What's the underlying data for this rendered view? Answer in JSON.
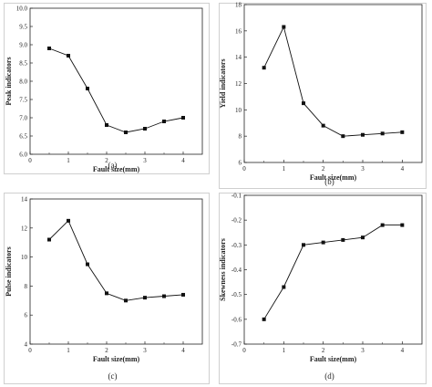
{
  "chart_data": [
    {
      "type": "line",
      "panel": "a",
      "caption": "(a)",
      "xlabel": "Fault size(mm)",
      "ylabel": "Peak indicators",
      "xlim": [
        0,
        4.5
      ],
      "ylim": [
        6.0,
        10.0
      ],
      "xticks": [
        "0",
        "1",
        "2",
        "3",
        "4"
      ],
      "yticks": [
        "6.0",
        "6.5",
        "7.0",
        "7.5",
        "8.0",
        "8.5",
        "9.0",
        "9.5",
        "10.0"
      ],
      "x": [
        0.5,
        1.0,
        1.5,
        2.0,
        2.5,
        3.0,
        3.5,
        4.0
      ],
      "y": [
        8.9,
        8.7,
        7.8,
        6.8,
        6.6,
        6.7,
        6.9,
        7.0
      ]
    },
    {
      "type": "line",
      "panel": "b",
      "caption": "(b)",
      "xlabel": "Fault size(mm)",
      "ylabel": "Yield indicators",
      "xlim": [
        0,
        4.5
      ],
      "ylim": [
        6,
        18
      ],
      "xticks": [
        "0",
        "1",
        "2",
        "3",
        "4"
      ],
      "yticks": [
        "6",
        "8",
        "10",
        "12",
        "14",
        "16",
        "18"
      ],
      "x": [
        0.5,
        1.0,
        1.5,
        2.0,
        2.5,
        3.0,
        3.5,
        4.0
      ],
      "y": [
        13.2,
        16.3,
        10.5,
        8.8,
        8.0,
        8.1,
        8.2,
        8.3
      ]
    },
    {
      "type": "line",
      "panel": "c",
      "caption": "(c)",
      "xlabel": "Fault size(mm)",
      "ylabel": "Pulse indicators",
      "xlim": [
        0,
        4.5
      ],
      "ylim": [
        4,
        14
      ],
      "xticks": [
        "0",
        "1",
        "2",
        "3",
        "4"
      ],
      "yticks": [
        "4",
        "6",
        "8",
        "10",
        "12",
        "14"
      ],
      "x": [
        0.5,
        1.0,
        1.5,
        2.0,
        2.5,
        3.0,
        3.5,
        4.0
      ],
      "y": [
        11.2,
        12.5,
        9.5,
        7.5,
        7.0,
        7.2,
        7.3,
        7.4
      ]
    },
    {
      "type": "line",
      "panel": "d",
      "caption": "(d)",
      "xlabel": "Fault size(mm)",
      "ylabel": "Skewness indicators",
      "xlim": [
        0,
        4.5
      ],
      "ylim": [
        -0.7,
        -0.1
      ],
      "xticks": [
        "0",
        "1",
        "2",
        "3",
        "4"
      ],
      "yticks": [
        "-0.7",
        "-0.6",
        "-0.5",
        "-0.4",
        "-0.3",
        "-0.2",
        "-0.1"
      ],
      "x": [
        0.5,
        1.0,
        1.5,
        2.0,
        2.5,
        3.0,
        3.5,
        4.0
      ],
      "y": [
        -0.6,
        -0.47,
        -0.3,
        -0.29,
        -0.28,
        -0.27,
        -0.22,
        -0.22
      ]
    }
  ]
}
